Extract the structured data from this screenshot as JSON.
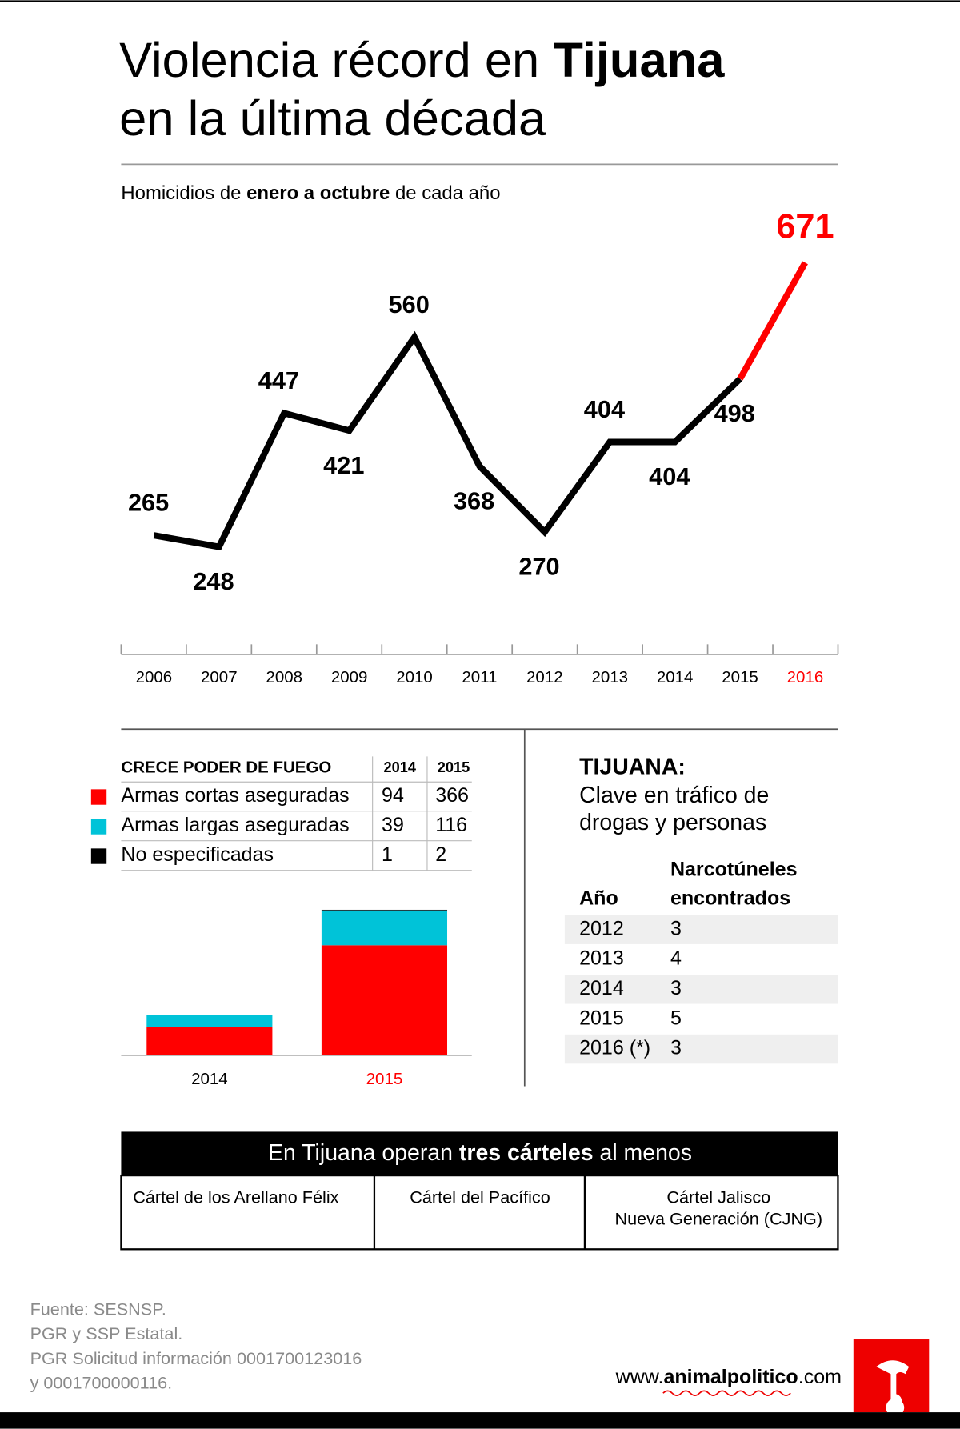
{
  "title": {
    "line1": [
      "Violencia récord en ",
      "Tijuana"
    ],
    "line2": "en la última década"
  },
  "subtitle": [
    "Homicidios de ",
    "enero a octubre",
    " de cada año"
  ],
  "chart_data": [
    {
      "type": "line",
      "categories": [
        "2006",
        "2007",
        "2008",
        "2009",
        "2010",
        "2011",
        "2012",
        "2013",
        "2014",
        "2015",
        "2016"
      ],
      "values": [
        265,
        248,
        447,
        421,
        560,
        368,
        270,
        404,
        404,
        498,
        671
      ],
      "color": "#000000",
      "point_colors": [
        "#000000",
        "#000000",
        "#000000",
        "#000000",
        "#000000",
        "#000000",
        "#000000",
        "#000000",
        "#000000",
        "#000000",
        "#ff0000"
      ]
    },
    {
      "type": "bar",
      "stacked": true,
      "title": "CRECE PODER DE FUEGO",
      "categories": [
        "2014",
        "2015"
      ],
      "category_colors": [
        "#000000",
        "#ff0000"
      ],
      "series": [
        {
          "name": "Armas cortas aseguradas",
          "color": "#ff0000",
          "values": [
            94,
            366
          ]
        },
        {
          "name": "Armas largas aseguradas",
          "color": "#00c3d8",
          "values": [
            39,
            116
          ]
        },
        {
          "name": "No especificadas",
          "color": "#000000",
          "values": [
            1,
            2
          ]
        }
      ]
    }
  ],
  "narco": {
    "title": "TIJUANA:",
    "subtitle": [
      "Clave en tráfico de",
      "drogas y personas"
    ],
    "columns": [
      [
        "Año"
      ],
      [
        "Narcotúneles",
        "encontrados"
      ]
    ],
    "rows": [
      [
        "2012",
        "3"
      ],
      [
        "2013",
        "4"
      ],
      [
        "2014",
        "3"
      ],
      [
        "2015",
        "5"
      ],
      [
        "2016 (*)",
        "3"
      ]
    ]
  },
  "carteles": {
    "header": [
      "En Tijuana operan ",
      "tres cárteles",
      " al menos"
    ],
    "items": [
      [
        "Cártel de los Arellano Félix"
      ],
      [
        "Cártel del Pacífico"
      ],
      [
        "Cártel Jalisco",
        "Nueva Generación (CJNG)"
      ]
    ]
  },
  "source": [
    "Fuente: SESNSP.",
    "PGR y SSP Estatal.",
    "PGR Solicitud información 0001700123016",
    "y 0001700000116."
  ],
  "site": [
    "www.",
    "animalpolitico",
    ".com"
  ]
}
